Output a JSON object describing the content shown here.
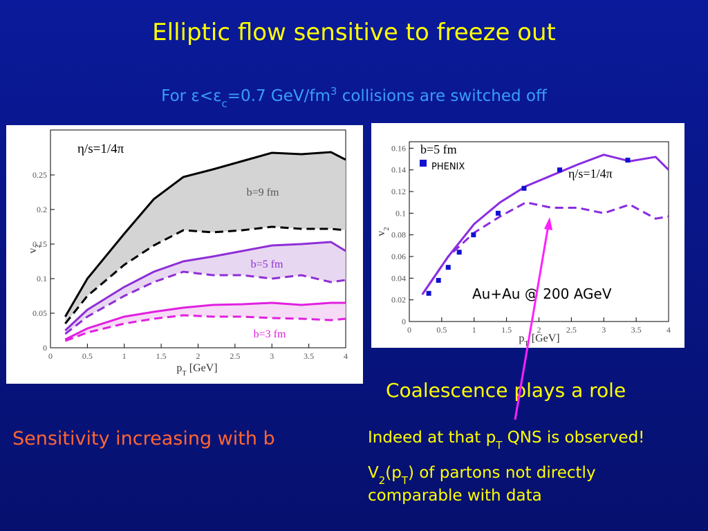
{
  "slide": {
    "title": "Elliptic flow sensitive to freeze out",
    "subtitle": [
      {
        "t": "For "
      },
      {
        "t": "ε<ε"
      },
      {
        "sub": "c"
      },
      {
        "t": "=0.7 GeV/fm"
      },
      {
        "sup": "3"
      },
      {
        "t": " collisions are switched off"
      }
    ],
    "left_note": "Sensitivity increasing with b",
    "right_note": "Coalescence plays a role",
    "bullets": [
      [
        {
          "t": "Indeed at that p"
        },
        {
          "sub": "T"
        },
        {
          "t": " QNS is observed!"
        }
      ],
      [
        {
          "t": "V"
        },
        {
          "sub": "2"
        },
        {
          "t": "(p"
        },
        {
          "sub": "T"
        },
        {
          "t": ") of partons not directly"
        }
      ],
      [
        {
          "t": "comparable with data"
        }
      ]
    ]
  },
  "chart_data": [
    {
      "type": "line",
      "xlabel": [
        {
          "t": "p"
        },
        {
          "sub": "T"
        },
        {
          "t": " [GeV]"
        }
      ],
      "ylabel": [
        {
          "t": "v"
        },
        {
          "sub": "2"
        }
      ],
      "xlim": [
        0,
        4
      ],
      "xticks": [
        0,
        0.5,
        1,
        1.5,
        2,
        2.5,
        3,
        3.5,
        4
      ],
      "ylim": [
        0,
        0.315
      ],
      "yticks": [
        0,
        0.05,
        0.1,
        0.15,
        0.2,
        0.25
      ],
      "annotations": [
        "η/s=1/4π"
      ],
      "x": [
        0.2,
        0.5,
        1,
        1.4,
        1.8,
        2.2,
        2.6,
        3,
        3.4,
        3.8,
        4
      ],
      "bands": [
        {
          "label": "b=9 fm",
          "color": "#000000",
          "fill": "#c9c9c9",
          "values": [
            0.045,
            0.1,
            0.165,
            0.215,
            0.247,
            0.258,
            0.27,
            0.282,
            0.28,
            0.283,
            0.272
          ],
          "dashed": [
            0.035,
            0.075,
            0.12,
            0.148,
            0.17,
            0.167,
            0.17,
            0.175,
            0.172,
            0.172,
            0.17
          ]
        },
        {
          "label": "b=5 fm",
          "color": "#8e2fd6",
          "fill": "#e2cdee",
          "values": [
            0.025,
            0.055,
            0.088,
            0.11,
            0.125,
            0.132,
            0.14,
            0.148,
            0.15,
            0.153,
            0.14
          ],
          "dashed": [
            0.02,
            0.045,
            0.075,
            0.095,
            0.11,
            0.105,
            0.105,
            0.1,
            0.105,
            0.095,
            0.098
          ]
        },
        {
          "label": "b=3 fm",
          "color": "#e020e0",
          "fill": "#f2d2f2",
          "values": [
            0.012,
            0.028,
            0.045,
            0.052,
            0.058,
            0.062,
            0.063,
            0.065,
            0.062,
            0.065,
            0.065
          ],
          "dashed": [
            0.01,
            0.022,
            0.035,
            0.042,
            0.047,
            0.045,
            0.045,
            0.043,
            0.042,
            0.04,
            0.042
          ]
        }
      ]
    },
    {
      "type": "line",
      "xlabel": [
        {
          "t": "p"
        },
        {
          "sub": "T"
        },
        {
          "t": " [GeV]"
        }
      ],
      "ylabel": [
        {
          "t": "v"
        },
        {
          "sub": "2"
        }
      ],
      "xlim": [
        0,
        4
      ],
      "xticks": [
        0,
        0.5,
        1,
        1.5,
        2,
        2.5,
        3,
        3.5,
        4
      ],
      "ylim": [
        0,
        0.166
      ],
      "yticks": [
        0,
        0.02,
        0.04,
        0.06,
        0.08,
        0.1,
        0.12,
        0.14,
        0.16
      ],
      "annotations": [
        "b=5 fm",
        "η/s=1/4π",
        "Au+Au @ 200 AGeV"
      ],
      "x": [
        0.2,
        0.6,
        1,
        1.4,
        1.8,
        2.2,
        2.6,
        3,
        3.4,
        3.8,
        4
      ],
      "bands": [
        {
          "color": "#8a2be2",
          "values": [
            0.025,
            0.06,
            0.09,
            0.11,
            0.125,
            0.135,
            0.145,
            0.154,
            0.148,
            0.152,
            0.14
          ],
          "dashed": [
            0.025,
            0.06,
            0.082,
            0.097,
            0.11,
            0.105,
            0.105,
            0.1,
            0.108,
            0.095,
            0.097
          ]
        }
      ],
      "points": {
        "name": "PHENIX",
        "color": "#1010d0",
        "x": [
          0.3,
          0.45,
          0.6,
          0.77,
          0.99,
          1.37,
          1.77,
          2.32,
          3.37
        ],
        "values": [
          0.026,
          0.038,
          0.05,
          0.064,
          0.08,
          0.1,
          0.123,
          0.14,
          0.149
        ]
      }
    }
  ]
}
